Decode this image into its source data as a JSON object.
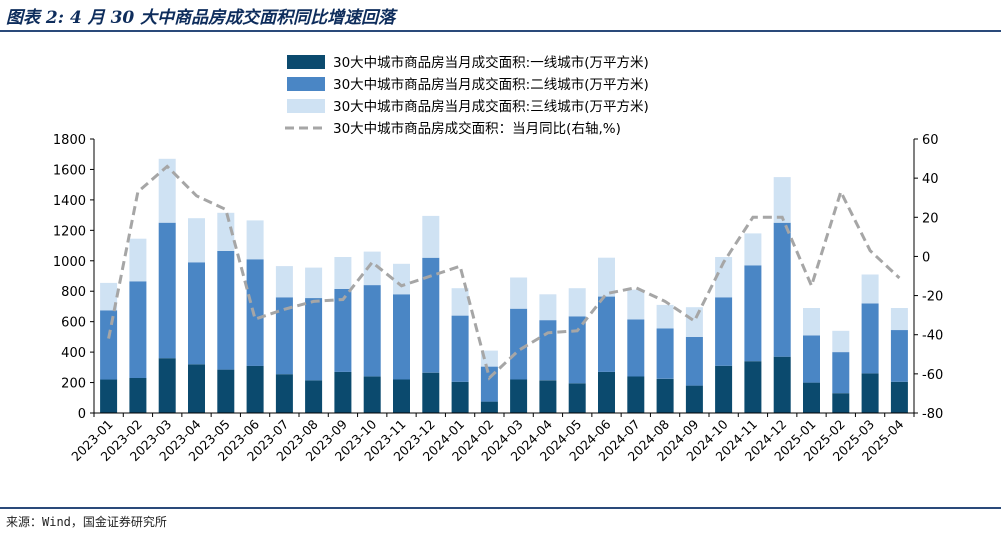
{
  "page": {
    "title": "图表 2: 4 月 30 大中商品房成交面积同比增速回落",
    "source": "来源：Wind，国金证券研究所"
  },
  "colors": {
    "tier1": "#0b4a6e",
    "tier2": "#4a86c5",
    "tier3": "#cfe2f3",
    "yoy_line": "#a6a6a6",
    "rule": "#2a4a7a"
  },
  "chart_data": {
    "type": "bar",
    "stacked": true,
    "title": "",
    "categories": [
      "2023-01",
      "2023-02",
      "2023-03",
      "2023-04",
      "2023-05",
      "2023-06",
      "2023-07",
      "2023-08",
      "2023-09",
      "2023-10",
      "2023-11",
      "2023-12",
      "2024-01",
      "2024-02",
      "2024-03",
      "2024-04",
      "2024-05",
      "2024-06",
      "2024-07",
      "2024-08",
      "2024-09",
      "2024-10",
      "2024-11",
      "2024-12",
      "2025-01",
      "2025-02",
      "2025-03",
      "2025-04"
    ],
    "series": [
      {
        "name": "30大中城市商品房当月成交面积:一线城市(万平方米)",
        "type": "bar",
        "axis": "left",
        "values": [
          220,
          230,
          360,
          320,
          285,
          310,
          255,
          215,
          270,
          240,
          220,
          265,
          205,
          75,
          220,
          215,
          195,
          270,
          240,
          225,
          180,
          310,
          340,
          370,
          200,
          130,
          260,
          205
        ]
      },
      {
        "name": "30大中城市商品房当月成交面积:二线城市(万平方米)",
        "type": "bar",
        "axis": "left",
        "values": [
          455,
          635,
          890,
          670,
          780,
          700,
          505,
          540,
          545,
          600,
          560,
          755,
          435,
          230,
          465,
          395,
          440,
          495,
          375,
          330,
          320,
          450,
          630,
          880,
          310,
          270,
          460,
          340
        ]
      },
      {
        "name": "30大中城市商品房当月成交面积:三线城市(万平方米)",
        "type": "bar",
        "axis": "left",
        "values": [
          180,
          280,
          420,
          290,
          250,
          255,
          205,
          200,
          210,
          220,
          200,
          275,
          180,
          105,
          205,
          170,
          185,
          255,
          195,
          155,
          195,
          265,
          210,
          300,
          180,
          140,
          190,
          145
        ]
      },
      {
        "name": "30大中城市商品房成交面积：当月同比(右轴,%)",
        "type": "line",
        "style": "dashed",
        "axis": "right",
        "values": [
          -42,
          33,
          46,
          31,
          24,
          -32,
          -27,
          -23,
          -22,
          -3,
          -15,
          -10,
          -5,
          -62,
          -48,
          -39,
          -38,
          -19,
          -16,
          -23,
          -33,
          -3,
          20,
          20,
          -15,
          33,
          3,
          -11
        ]
      }
    ],
    "y_left": {
      "min": 0,
      "max": 1800,
      "ticks": [
        0,
        200,
        400,
        600,
        800,
        1000,
        1200,
        1400,
        1600,
        1800
      ]
    },
    "y_right": {
      "min": -80,
      "max": 60,
      "ticks": [
        -80,
        -60,
        -40,
        -20,
        0,
        20,
        40,
        60
      ]
    },
    "xlabel": "",
    "ylabel": "",
    "grid": false,
    "legend_position": "top-center"
  }
}
